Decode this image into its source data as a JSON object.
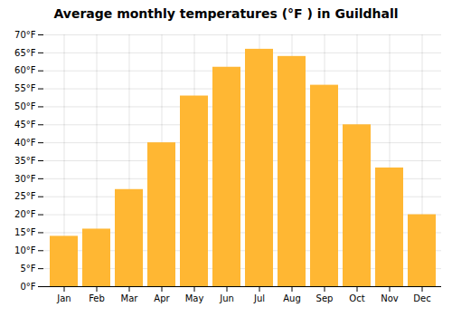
{
  "chart_data": {
    "type": "bar",
    "title": "Average monthly temperatures (°F ) in Guildhall",
    "categories": [
      "Jan",
      "Feb",
      "Mar",
      "Apr",
      "May",
      "Jun",
      "Jul",
      "Aug",
      "Sep",
      "Oct",
      "Nov",
      "Dec"
    ],
    "values": [
      14,
      16,
      27,
      40,
      53,
      61,
      66,
      64,
      56,
      45,
      33,
      20
    ],
    "color": "#FFB733",
    "ylim": [
      0,
      70
    ],
    "yticks": [
      {
        "value": 0,
        "label": "0°F"
      },
      {
        "value": 5,
        "label": "5°F"
      },
      {
        "value": 10,
        "label": "10°F"
      },
      {
        "value": 15,
        "label": "15°F"
      },
      {
        "value": 20,
        "label": "20°F"
      },
      {
        "value": 25,
        "label": "25°F"
      },
      {
        "value": 30,
        "label": "30°F"
      },
      {
        "value": 35,
        "label": "35°F"
      },
      {
        "value": 40,
        "label": "40°F"
      },
      {
        "value": 45,
        "label": "45°F"
      },
      {
        "value": 50,
        "label": "50°F"
      },
      {
        "value": 55,
        "label": "55°F"
      },
      {
        "value": 60,
        "label": "60°F"
      },
      {
        "value": 65,
        "label": "65°F"
      },
      {
        "value": 70,
        "label": "70°F"
      }
    ],
    "grid": true
  }
}
